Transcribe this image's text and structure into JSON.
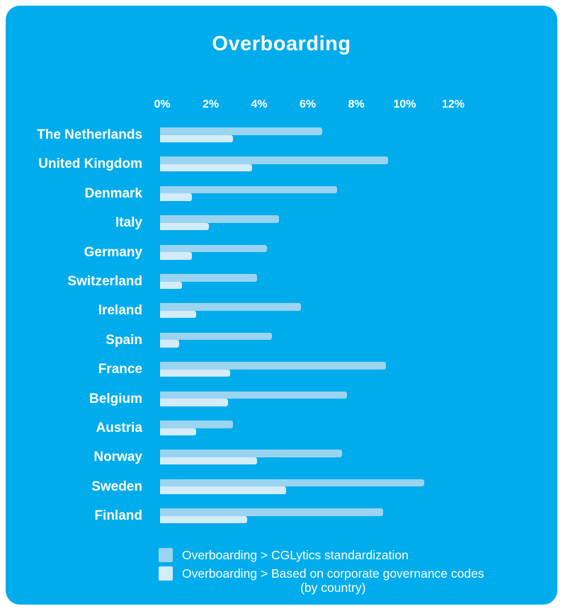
{
  "title": "Overboarding",
  "colors": {
    "page_background": "#FFFFFF",
    "card_background": "#00ACEC",
    "text": "#FFFFFF",
    "series1": "#9BD4F0",
    "series2": "#D4EBF8"
  },
  "chart_data": {
    "type": "bar",
    "orientation": "horizontal",
    "title": "Overboarding",
    "xlabel": "",
    "ylabel": "",
    "xlim": [
      0,
      12
    ],
    "x_tick_labels": [
      "0%",
      "2%",
      "4%",
      "6%",
      "8%",
      "10%",
      "12%"
    ],
    "x_tick_values": [
      0,
      2,
      4,
      6,
      8,
      10,
      12
    ],
    "grid": false,
    "legend_position": "bottom",
    "categories": [
      "The Netherlands",
      "United Kingdom",
      "Denmark",
      "Italy",
      "Germany",
      "Switzerland",
      "Ireland",
      "Spain",
      "France",
      "Belgium",
      "Austria",
      "Norway",
      "Sweden",
      "Finland"
    ],
    "series": [
      {
        "name": "Overboarding > CGLytics standardization",
        "color": "#9BD4F0",
        "unit": "%",
        "values": [
          6.7,
          9.4,
          7.3,
          4.9,
          4.4,
          4.0,
          5.8,
          4.6,
          9.3,
          7.7,
          3.0,
          7.5,
          10.9,
          9.2
        ]
      },
      {
        "name": "Overboarding > Based on corporate governance codes (by country)",
        "color": "#D4EBF8",
        "unit": "%",
        "values": [
          3.0,
          3.8,
          1.3,
          2.0,
          1.3,
          0.9,
          1.5,
          0.8,
          2.9,
          2.8,
          1.5,
          4.0,
          5.2,
          3.6
        ]
      }
    ]
  },
  "legend": {
    "items": [
      {
        "label": "Overboarding > CGLytics standardization"
      },
      {
        "label_line1": "Overboarding > Based on corporate governance codes",
        "label_line2": "(by country)"
      }
    ]
  }
}
